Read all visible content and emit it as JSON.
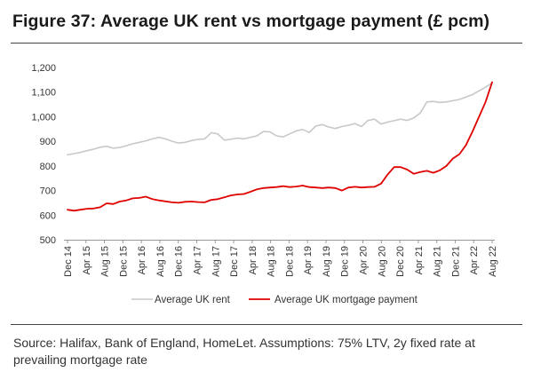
{
  "title": "Figure 37: Average UK rent vs mortgage payment (£ pcm)",
  "source": "Source: Halifax, Bank of England, HomeLet. Assumptions: 75% LTV, 2y fixed rate at prevailing mortgage rate",
  "chart_data": {
    "type": "line",
    "title": "Figure 37: Average UK rent vs mortgage payment (£ pcm)",
    "xlabel": "",
    "ylabel": "",
    "ylim": [
      500,
      1200
    ],
    "yticks": [
      "500",
      "600",
      "700",
      "800",
      "900",
      "1,000",
      "1,100",
      "1,200"
    ],
    "x_tick_labels": [
      "Dec 14",
      "Apr 15",
      "Aug 15",
      "Dec 15",
      "Apr 16",
      "Aug 16",
      "Dec 16",
      "Apr 17",
      "Aug 17",
      "Dec 17",
      "Apr 18",
      "Aug 18",
      "Dec 18",
      "Apr 19",
      "Aug 19",
      "Dec 19",
      "Apr 20",
      "Aug 20",
      "Dec 20",
      "Apr 21",
      "Aug 21",
      "Dec 21",
      "Apr 22",
      "Aug 22"
    ],
    "grid": false,
    "legend_position": "bottom",
    "colors": {
      "rent": "#c8c8c8",
      "mortgage": "#e00000"
    },
    "series": [
      {
        "name": "Average UK rent",
        "values": [
          845,
          850,
          855,
          862,
          868,
          876,
          880,
          872,
          875,
          882,
          890,
          896,
          902,
          910,
          916,
          910,
          900,
          893,
          896,
          903,
          908,
          910,
          935,
          930,
          905,
          908,
          913,
          910,
          916,
          922,
          940,
          938,
          922,
          918,
          930,
          942,
          948,
          936,
          962,
          968,
          958,
          952,
          960,
          965,
          972,
          960,
          985,
          990,
          970,
          978,
          984,
          990,
          985,
          995,
          1015,
          1060,
          1062,
          1058,
          1060,
          1065,
          1070,
          1080,
          1090,
          1105,
          1120,
          1138
        ]
      },
      {
        "name": "Average UK mortgage payment",
        "values": [
          622,
          618,
          622,
          626,
          627,
          632,
          648,
          645,
          655,
          660,
          668,
          670,
          675,
          665,
          660,
          656,
          652,
          650,
          654,
          655,
          653,
          652,
          662,
          665,
          672,
          680,
          684,
          686,
          695,
          705,
          710,
          712,
          714,
          718,
          714,
          716,
          720,
          714,
          712,
          710,
          712,
          710,
          700,
          712,
          715,
          712,
          714,
          715,
          728,
          765,
          795,
          795,
          785,
          768,
          775,
          780,
          772,
          782,
          800,
          830,
          848,
          885,
          940,
          1000,
          1060,
          1140
        ]
      }
    ]
  }
}
